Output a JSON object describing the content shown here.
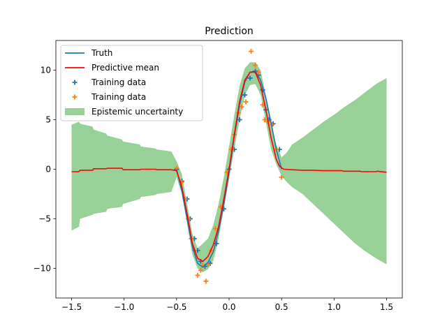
{
  "chart_data": {
    "type": "line",
    "title": "Prediction",
    "xlabel": "",
    "ylabel": "",
    "xlim": [
      -1.65,
      1.65
    ],
    "ylim": [
      -13.0,
      13.0
    ],
    "x_ticks": [
      -1.5,
      -1.0,
      -0.5,
      0.0,
      0.5,
      1.0,
      1.5
    ],
    "x_tick_labels": [
      "−1.5",
      "−1.0",
      "−0.5",
      "0.0",
      "0.5",
      "1.0",
      "1.5"
    ],
    "y_ticks": [
      -10,
      -5,
      0,
      5,
      10
    ],
    "y_tick_labels": [
      "−10",
      "−5",
      "0",
      "5",
      "10"
    ],
    "grid": false,
    "legend": {
      "placement": "top-left",
      "entries": [
        {
          "label": "Truth",
          "kind": "line",
          "color": "#1f77b4"
        },
        {
          "label": "Predictive mean",
          "kind": "line",
          "color": "#ff0000"
        },
        {
          "label": "Training data",
          "kind": "marker",
          "color": "#1f77b4"
        },
        {
          "label": "Training data",
          "kind": "marker",
          "color": "#ff7f0e"
        },
        {
          "label": "Epistemic uncertainty",
          "kind": "patch",
          "color": "#98d198"
        }
      ]
    },
    "colors": {
      "truth": "#1f77b4",
      "mean": "#ff0000",
      "train_blue": "#1f77b4",
      "train_orange": "#ff7f0e",
      "uncertainty": "#98d198"
    },
    "series": [
      {
        "kind": "line",
        "color": "#1f77b4",
        "x": [
          -0.5,
          -0.45,
          -0.4,
          -0.35,
          -0.3,
          -0.25,
          -0.2,
          -0.15,
          -0.1,
          -0.05,
          0.0,
          0.05,
          0.1,
          0.15,
          0.2,
          0.25,
          0.3,
          0.35,
          0.4,
          0.45,
          0.5
        ],
        "y": [
          0.0,
          -2.2,
          -5.0,
          -7.8,
          -9.5,
          -9.9,
          -9.4,
          -8.3,
          -6.2,
          -3.5,
          -0.3,
          3.3,
          6.5,
          8.8,
          9.8,
          9.9,
          9.0,
          7.2,
          4.7,
          2.0,
          0.0
        ]
      },
      {
        "kind": "line",
        "color": "#ff0000",
        "x": [
          -1.5,
          -1.43,
          -1.42,
          -1.3,
          -1.29,
          -1.17,
          -1.16,
          -1.02,
          -1.01,
          -0.85,
          -0.84,
          -0.7,
          -0.69,
          -0.55,
          -0.5,
          -0.45,
          -0.4,
          -0.35,
          -0.3,
          -0.25,
          -0.2,
          -0.15,
          -0.1,
          -0.05,
          0.0,
          0.05,
          0.1,
          0.15,
          0.2,
          0.25,
          0.3,
          0.35,
          0.4,
          0.45,
          0.48,
          0.52,
          0.6,
          0.7,
          0.8,
          0.9,
          1.0,
          1.08,
          1.09,
          1.25,
          1.26,
          1.4,
          1.41,
          1.5
        ],
        "y": [
          -0.25,
          -0.25,
          -0.1,
          -0.1,
          0.05,
          0.05,
          0.1,
          0.1,
          -0.05,
          -0.05,
          0.0,
          0.0,
          -0.05,
          -0.05,
          -0.15,
          -1.8,
          -4.5,
          -7.5,
          -9.0,
          -9.3,
          -8.8,
          -7.6,
          -5.8,
          -3.0,
          0.0,
          3.5,
          6.8,
          9.0,
          9.8,
          9.8,
          8.5,
          6.0,
          3.2,
          1.0,
          0.3,
          0.0,
          -0.05,
          -0.1,
          -0.1,
          -0.15,
          -0.15,
          -0.15,
          -0.2,
          -0.2,
          -0.25,
          -0.25,
          -0.2,
          -0.3
        ]
      },
      {
        "kind": "scatter",
        "color": "#1f77b4",
        "x": [
          -0.5,
          -0.45,
          -0.4,
          -0.37,
          -0.33,
          -0.3,
          -0.27,
          -0.23,
          -0.18,
          -0.12,
          -0.05,
          0.0,
          0.05,
          0.1,
          0.15,
          0.2,
          0.25,
          0.28,
          0.32,
          0.35,
          0.38,
          0.42,
          0.48
        ],
        "y": [
          0.0,
          -1.2,
          -3.0,
          -5.0,
          -7.0,
          -8.2,
          -9.3,
          -9.8,
          -9.5,
          -7.5,
          -4.0,
          0.0,
          2.0,
          5.0,
          7.5,
          9.2,
          9.9,
          9.5,
          8.0,
          6.0,
          5.0,
          4.6,
          2.0
        ]
      },
      {
        "kind": "scatter",
        "color": "#ff7f0e",
        "x": [
          -0.5,
          -0.45,
          -0.42,
          -0.39,
          -0.36,
          -0.33,
          -0.3,
          -0.27,
          -0.25,
          -0.22,
          -0.2,
          -0.17,
          -0.13,
          -0.08,
          -0.02,
          0.02,
          0.05,
          0.09,
          0.12,
          0.16,
          0.21,
          0.25,
          0.28,
          0.32,
          0.34,
          0.37,
          0.41,
          0.45,
          0.5
        ],
        "y": [
          0.1,
          -1.3,
          -3.0,
          -5.0,
          -7.0,
          -8.2,
          -10.7,
          -10.2,
          -9.7,
          -11.3,
          -9.6,
          -8.2,
          -6.0,
          -3.8,
          -0.3,
          2.0,
          3.5,
          5.7,
          6.3,
          6.8,
          11.9,
          10.5,
          9.8,
          6.5,
          5.0,
          4.8,
          4.5,
          2.0,
          -0.8
        ]
      },
      {
        "kind": "band",
        "color": "#98d198",
        "x": [
          -1.5,
          -1.43,
          -1.42,
          -1.3,
          -1.29,
          -1.17,
          -1.16,
          -1.02,
          -1.01,
          -0.85,
          -0.84,
          -0.7,
          -0.69,
          -0.55,
          -0.5,
          -0.45,
          -0.4,
          -0.35,
          -0.3,
          -0.25,
          -0.2,
          -0.15,
          -0.1,
          -0.05,
          0.0,
          0.05,
          0.1,
          0.15,
          0.2,
          0.25,
          0.3,
          0.35,
          0.4,
          0.45,
          0.5,
          0.55,
          0.6,
          0.7,
          0.8,
          0.9,
          1.0,
          1.1,
          1.2,
          1.3,
          1.4,
          1.5
        ],
        "lower": [
          -6.2,
          -5.8,
          -5.0,
          -4.6,
          -4.5,
          -4.3,
          -4.0,
          -3.8,
          -3.5,
          -3.0,
          -2.8,
          -2.6,
          -2.5,
          -2.3,
          -0.8,
          -2.5,
          -5.5,
          -8.6,
          -10.0,
          -10.4,
          -10.1,
          -9.2,
          -7.0,
          -4.0,
          -1.0,
          2.0,
          5.0,
          7.5,
          8.5,
          8.6,
          7.5,
          4.8,
          2.0,
          0.5,
          -0.7,
          -1.3,
          -1.8,
          -2.5,
          -3.5,
          -4.5,
          -5.5,
          -6.5,
          -7.5,
          -8.3,
          -9.0,
          -9.6
        ],
        "upper": [
          4.5,
          4.8,
          4.6,
          4.3,
          4.0,
          3.6,
          3.4,
          3.0,
          2.8,
          2.5,
          2.3,
          2.1,
          2.0,
          1.8,
          0.8,
          -0.5,
          -3.5,
          -6.5,
          -8.0,
          -7.5,
          -7.0,
          -5.6,
          -3.5,
          -0.8,
          2.3,
          5.5,
          8.4,
          10.2,
          10.8,
          10.8,
          10.0,
          7.5,
          4.5,
          2.5,
          1.2,
          1.7,
          2.5,
          3.2,
          4.0,
          4.8,
          5.5,
          6.3,
          7.0,
          7.8,
          8.6,
          9.2
        ]
      }
    ]
  }
}
